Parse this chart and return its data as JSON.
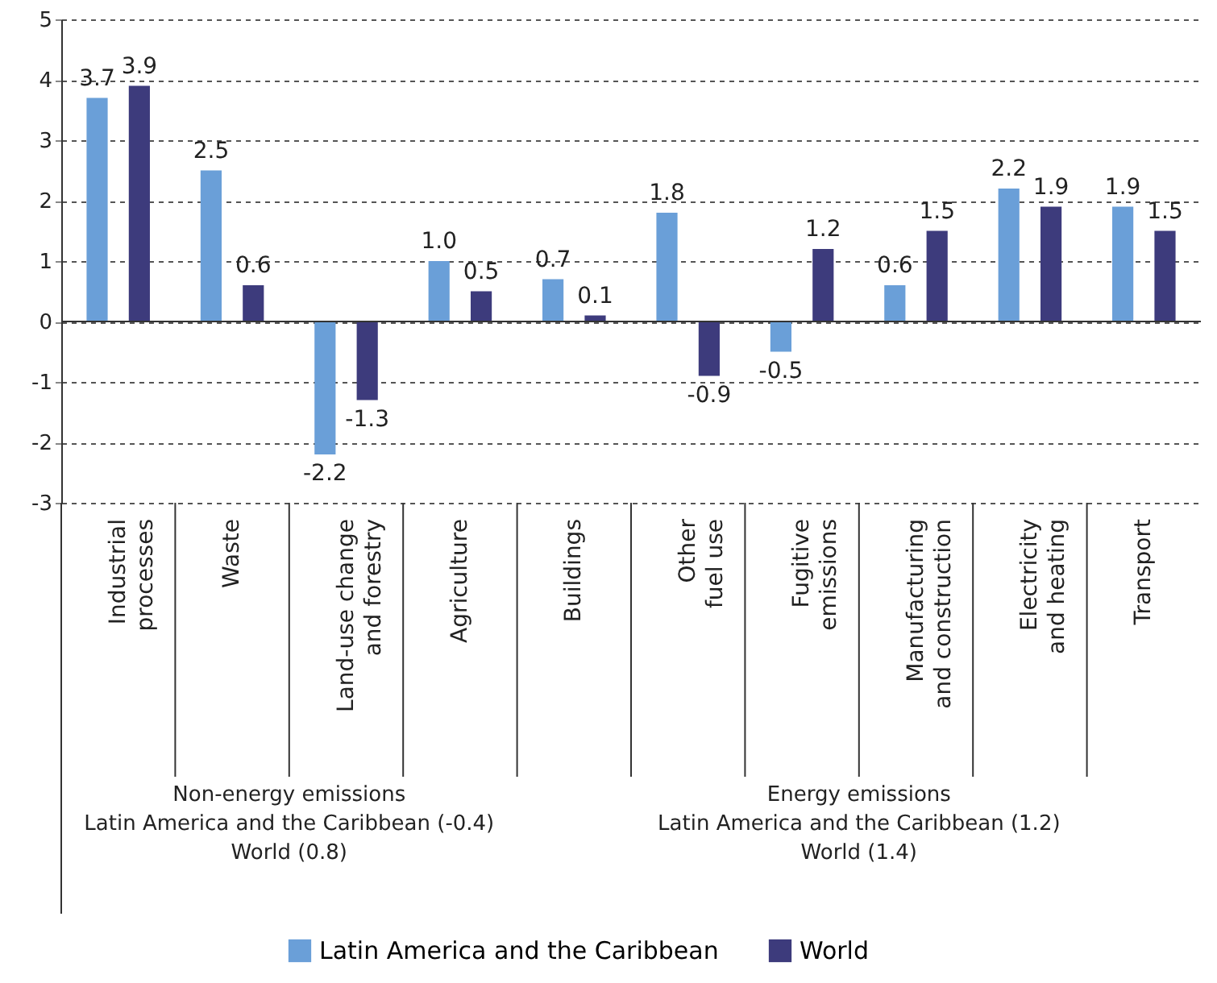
{
  "chart_data": {
    "type": "bar",
    "categories": [
      "Industrial processes",
      "Waste",
      "Land-use change and forestry",
      "Agriculture",
      "Buildings",
      "Other fuel use",
      "Fugitive emissions",
      "Manufacturing and construction",
      "Electricity and heating",
      "Transport"
    ],
    "series": [
      {
        "name": "Latin America and the Caribbean",
        "color": "#6a9fd8",
        "values": [
          3.7,
          2.5,
          -2.2,
          1.0,
          0.7,
          1.8,
          -0.5,
          0.6,
          2.2,
          1.9
        ]
      },
      {
        "name": "World",
        "color": "#3d3b7c",
        "values": [
          3.9,
          0.6,
          -1.3,
          0.5,
          0.1,
          -0.9,
          1.2,
          1.5,
          1.9,
          1.5
        ]
      }
    ],
    "ylim": [
      -3,
      5
    ],
    "yticks": [
      -3,
      -2,
      -1,
      0,
      1,
      2,
      3,
      4,
      5
    ],
    "grid": "y",
    "legend": "bottom",
    "value_labels": [
      [
        "3.7",
        "2.5",
        "-2.2",
        "1.0",
        "0.7",
        "1.8",
        "-0.5",
        "0.6",
        "2.2",
        "1.9"
      ],
      [
        "3.9",
        "0.6",
        "-1.3",
        "0.5",
        "0.1",
        "-0.9",
        "1.2",
        "1.5",
        "1.9",
        "1.5"
      ]
    ],
    "annotations": [
      "Non-energy emissions\nLatin America and the Caribbean (-0.4)\nWorld (0.8)",
      "Energy emissions\nLatin America and the Caribbean (1.2)\nWorld (1.4)"
    ]
  }
}
